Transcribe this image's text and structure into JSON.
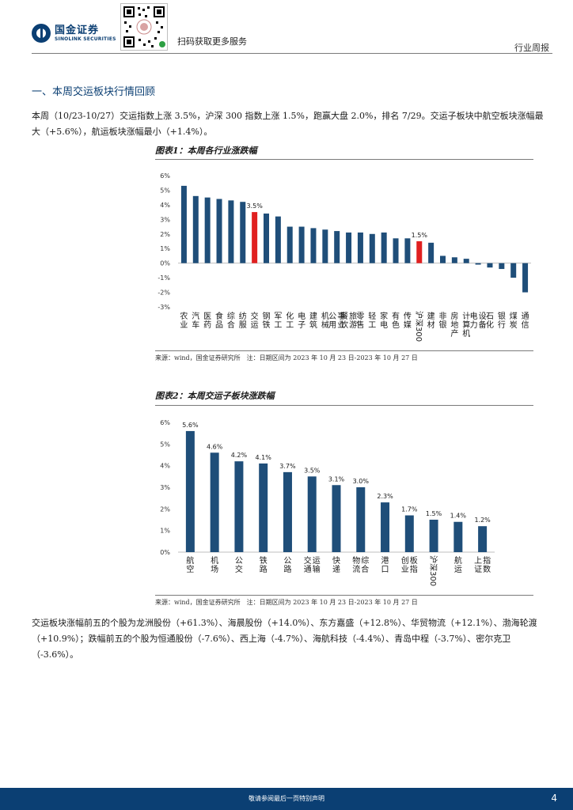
{
  "header": {
    "logo_cn": "国金证券",
    "logo_en": "SINOLINK SECURITIES",
    "qr_caption": "扫码获取更多服务",
    "report_type": "行业周报"
  },
  "section": {
    "title": "一、本周交运板块行情回顾"
  },
  "paragraph1": "本周（10/23-10/27）交运指数上涨 3.5%，沪深 300 指数上涨 1.5%，跑赢大盘 2.0%，排名 7/29。交运子板块中航空板块涨幅最大（+5.6%），航运板块涨幅最小（+1.4%）。",
  "paragraph2": "交运板块涨幅前五的个股为龙洲股份（+61.3%）、海晨股份（+14.0%）、东方嘉盛（+12.8%）、华贸物流（+12.1%）、渤海轮渡（+10.9%）；跌幅前五的个股为恒通股份（-7.6%）、西上海（-4.7%）、海航科技（-4.4%）、青岛中程（-3.7%）、密尔克卫（-3.6%）。",
  "figure1": {
    "title": "图表1：本周各行业涨跌幅",
    "source": "来源：wind，国金证券研究所　注：日期区间为 2023 年 10 月 23 日-2023 年 10 月 27 日"
  },
  "figure2": {
    "title": "图表2：本周交运子板块涨跌幅",
    "source": "来源：wind，国金证券研究所　注：日期区间为 2023 年 10 月 23 日-2023 年 10 月 27 日"
  },
  "footer": {
    "text": "敬请参阅最后一页特别声明",
    "page": "4"
  },
  "colors": {
    "bar": "#1f4e79",
    "highlight": "#e02020",
    "brand": "#0b3f73"
  },
  "chart_data": [
    {
      "type": "bar",
      "title": "图表1：本周各行业涨跌幅",
      "categories": [
        "农业",
        "汽车",
        "医药",
        "食品",
        "综合",
        "纺服",
        "交运",
        "钢铁",
        "军工",
        "化工",
        "电子",
        "建筑",
        "机械",
        "公用事业",
        "餐饮旅游",
        "零售",
        "轻工",
        "家电",
        "有色",
        "传媒",
        "沪深300",
        "建材",
        "非银",
        "房地产",
        "计算机",
        "电力设备",
        "石化",
        "银行",
        "煤炭",
        "通信"
      ],
      "values": [
        5.3,
        4.6,
        4.5,
        4.4,
        4.3,
        4.2,
        3.5,
        3.4,
        3.2,
        2.5,
        2.5,
        2.4,
        2.3,
        2.2,
        2.1,
        2.1,
        2.0,
        2.1,
        1.7,
        1.7,
        1.5,
        1.4,
        0.5,
        0.4,
        0.3,
        -0.1,
        -0.3,
        -0.4,
        -1.0,
        -2.0
      ],
      "highlight": [
        "交运",
        "沪深300"
      ],
      "data_labels": {
        "交运": "3.5%",
        "沪深300": "1.5%"
      },
      "y_ticks": [
        "6%",
        "5%",
        "4%",
        "3%",
        "2%",
        "1%",
        "0%",
        "-1%",
        "-2%",
        "-3%"
      ],
      "ylim": [
        -3,
        6
      ]
    },
    {
      "type": "bar",
      "title": "图表2：本周交运子板块涨跌幅",
      "categories": [
        "航空",
        "机场",
        "公交",
        "铁路",
        "公路",
        "交通运输",
        "快递",
        "物流综合",
        "港口",
        "创业板指",
        "沪深300",
        "航运",
        "上证指数"
      ],
      "values": [
        5.6,
        4.6,
        4.2,
        4.1,
        3.7,
        3.5,
        3.1,
        3.0,
        2.3,
        1.7,
        1.5,
        1.4,
        1.2
      ],
      "data_labels": [
        "5.6%",
        "4.6%",
        "4.2%",
        "4.1%",
        "3.7%",
        "3.5%",
        "3.1%",
        "3.0%",
        "2.3%",
        "1.7%",
        "1.5%",
        "1.4%",
        "1.2%"
      ],
      "y_ticks": [
        "6%",
        "5%",
        "4%",
        "3%",
        "2%",
        "1%",
        "0%"
      ],
      "ylim": [
        0,
        6
      ]
    }
  ]
}
